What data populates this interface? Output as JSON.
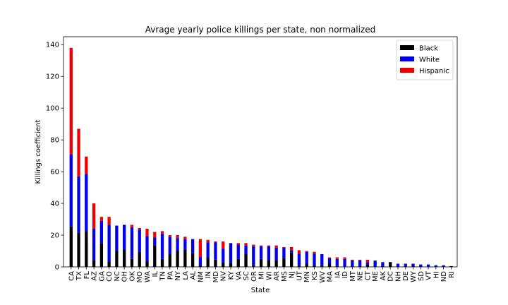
{
  "chart_data": {
    "type": "bar",
    "stacked": true,
    "title": "Avrage yearly police killings per state, non normalized",
    "xlabel": "State",
    "ylabel": "Killings coefficient",
    "ylim": [
      0,
      145
    ],
    "yticks": [
      0,
      20,
      40,
      60,
      80,
      100,
      120,
      140
    ],
    "grid": false,
    "legend_position": "top-right",
    "categories": [
      "CA",
      "TX",
      "FL",
      "AZ",
      "GA",
      "CO",
      "NC",
      "OH",
      "OK",
      "MO",
      "WA",
      "IL",
      "TN",
      "PA",
      "NY",
      "LA",
      "AL",
      "NM",
      "IN",
      "MD",
      "NV",
      "KY",
      "VA",
      "SC",
      "OR",
      "MI",
      "WI",
      "AR",
      "MS",
      "NJ",
      "UT",
      "MN",
      "KS",
      "WV",
      "MA",
      "IA",
      "ID",
      "MT",
      "NE",
      "CT",
      "ME",
      "AK",
      "DC",
      "NH",
      "DE",
      "WY",
      "SD",
      "VT",
      "HI",
      "ND",
      "RI"
    ],
    "series": [
      {
        "name": "Black",
        "color": "#000000",
        "values": [
          25.5,
          21.5,
          22.5,
          4,
          15,
          3.5,
          10,
          11,
          5,
          9.5,
          3.5,
          13.5,
          5,
          8,
          10,
          11,
          8.5,
          1,
          6,
          4.5,
          3,
          2.5,
          5,
          8,
          1,
          5,
          4,
          4,
          5.5,
          9,
          1,
          2,
          1,
          1,
          2,
          0.5,
          0,
          0,
          0.5,
          1.5,
          0,
          0.5,
          3,
          0,
          0.5,
          0,
          0,
          0,
          0,
          0,
          0.5
        ]
      },
      {
        "name": "White",
        "color": "#0000ee",
        "values": [
          45.5,
          35.5,
          36,
          20,
          14,
          23,
          16,
          15.5,
          20,
          14,
          16,
          5,
          16,
          11,
          8,
          6.5,
          9,
          5,
          9.5,
          11,
          8.5,
          12.5,
          9,
          5.5,
          12,
          8,
          9,
          8,
          6.5,
          1.5,
          7.5,
          7.5,
          7.5,
          7,
          3.5,
          4.5,
          5,
          4,
          3.5,
          1.5,
          4,
          2.5,
          0,
          2,
          1.5,
          2,
          1.5,
          1.5,
          1,
          1,
          0
        ]
      },
      {
        "name": "Hispanic",
        "color": "#ee0000",
        "values": [
          67,
          30,
          11,
          16,
          2.5,
          5,
          0,
          0,
          1.5,
          1,
          4.5,
          3.5,
          1.5,
          1,
          2,
          1.5,
          0,
          11.5,
          1.5,
          0.5,
          4.5,
          0,
          1,
          1.5,
          1,
          0.5,
          0.5,
          1.5,
          0.5,
          2,
          2,
          0.5,
          1,
          0,
          0.5,
          1,
          1,
          0.5,
          0.5,
          1.5,
          0,
          0,
          0,
          0,
          0,
          0,
          0,
          0,
          0,
          0,
          0
        ]
      }
    ]
  }
}
